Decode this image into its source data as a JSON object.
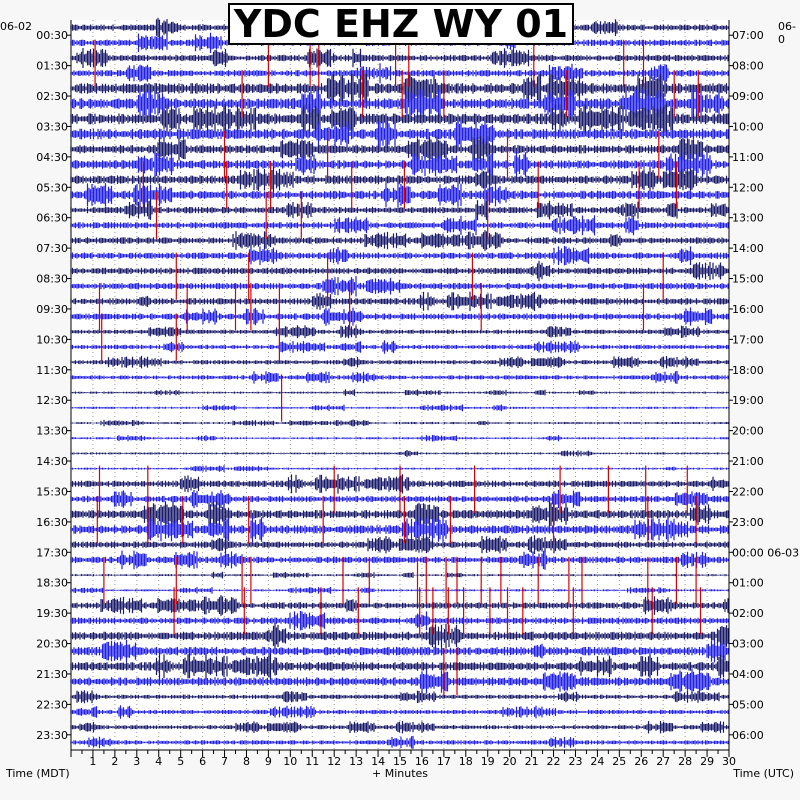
{
  "title": "YDC EHZ WY 01",
  "date_left": "06-02",
  "date_right": "06-0",
  "colors": {
    "dark": "#1a1a6b",
    "blue": "#1f1fe6",
    "event": "#dd0000",
    "grid": "#9a9a9a"
  },
  "chart_data": {
    "type": "helicorder",
    "title": "YDC EHZ WY 01",
    "xlabel": "+ Minutes",
    "ylabel_left": "Time (MDT)",
    "ylabel_right": "Time (UTC)",
    "x_ticks": [
      "1",
      "2",
      "3",
      "4",
      "5",
      "6",
      "7",
      "8",
      "9",
      "10",
      "11",
      "12",
      "13",
      "14",
      "15",
      "16",
      "17",
      "18",
      "19",
      "20",
      "21",
      "22",
      "23",
      "24",
      "25",
      "26",
      "27",
      "28",
      "29",
      "30"
    ],
    "xlim": [
      0,
      30
    ],
    "left_labels": [
      "00:30",
      "01:30",
      "02:30",
      "03:30",
      "04:30",
      "05:30",
      "06:30",
      "07:30",
      "08:30",
      "09:30",
      "10:30",
      "11:30",
      "12:30",
      "13:30",
      "14:30",
      "15:30",
      "16:30",
      "17:30",
      "18:30",
      "19:30",
      "20:30",
      "21:30",
      "22:30",
      "23:30"
    ],
    "right_labels": [
      "07:00",
      "08:00",
      "09:00",
      "10:00",
      "11:00",
      "12:00",
      "13:00",
      "14:00",
      "15:00",
      "16:00",
      "17:00",
      "18:00",
      "19:00",
      "20:00",
      "21:00",
      "22:00",
      "23:00",
      "00:00 06-03",
      "01:00",
      "02:00",
      "03:00",
      "04:00",
      "05:00",
      "06:00"
    ],
    "trace_count": 48,
    "trace_colors": [
      "dark",
      "blue"
    ],
    "noise_by_hour": [
      3,
      3,
      5,
      5,
      4,
      4,
      3,
      3,
      3,
      3,
      2,
      2,
      1,
      1,
      1,
      3,
      4,
      3,
      1,
      3,
      4,
      4,
      2,
      2
    ],
    "events": [
      {
        "line": 2,
        "minute": 1.1
      },
      {
        "line": 2,
        "minute": 9.0
      },
      {
        "line": 2,
        "minute": 10.9
      },
      {
        "line": 2,
        "minute": 11.3
      },
      {
        "line": 2,
        "minute": 14.8
      },
      {
        "line": 2,
        "minute": 15.4
      },
      {
        "line": 2,
        "minute": 21.1
      },
      {
        "line": 2,
        "minute": 25.2
      },
      {
        "line": 2,
        "minute": 26.1
      },
      {
        "line": 4,
        "minute": 7.8
      },
      {
        "line": 4,
        "minute": 13.3
      },
      {
        "line": 4,
        "minute": 15.1
      },
      {
        "line": 4,
        "minute": 17.0
      },
      {
        "line": 4,
        "minute": 22.6
      },
      {
        "line": 4,
        "minute": 27.5
      },
      {
        "line": 4,
        "minute": 28.6
      },
      {
        "line": 8,
        "minute": 7.0
      },
      {
        "line": 8,
        "minute": 11.7
      },
      {
        "line": 8,
        "minute": 19.9
      },
      {
        "line": 8,
        "minute": 26.8
      },
      {
        "line": 10,
        "minute": 3.3
      },
      {
        "line": 10,
        "minute": 7.1
      },
      {
        "line": 10,
        "minute": 9.1
      },
      {
        "line": 10,
        "minute": 12.8
      },
      {
        "line": 10,
        "minute": 15.2
      },
      {
        "line": 10,
        "minute": 21.3
      },
      {
        "line": 10,
        "minute": 25.9
      },
      {
        "line": 10,
        "minute": 27.6
      },
      {
        "line": 12,
        "minute": 3.9
      },
      {
        "line": 12,
        "minute": 8.9
      },
      {
        "line": 12,
        "minute": 10.5
      },
      {
        "line": 12,
        "minute": 19.0
      },
      {
        "line": 16,
        "minute": 4.8
      },
      {
        "line": 16,
        "minute": 8.1
      },
      {
        "line": 16,
        "minute": 11.7
      },
      {
        "line": 16,
        "minute": 18.3
      },
      {
        "line": 16,
        "minute": 27.0
      },
      {
        "line": 18,
        "minute": 1.3
      },
      {
        "line": 18,
        "minute": 5.3
      },
      {
        "line": 18,
        "minute": 7.5
      },
      {
        "line": 18,
        "minute": 8.2
      },
      {
        "line": 18,
        "minute": 9.5
      },
      {
        "line": 18,
        "minute": 12.7
      },
      {
        "line": 18,
        "minute": 18.7
      },
      {
        "line": 18,
        "minute": 26.1
      },
      {
        "line": 20,
        "minute": 1.4
      },
      {
        "line": 20,
        "minute": 4.8
      },
      {
        "line": 20,
        "minute": 9.5
      },
      {
        "line": 24,
        "minute": 9.6
      },
      {
        "line": 30,
        "minute": 1.3
      },
      {
        "line": 30,
        "minute": 3.5
      },
      {
        "line": 30,
        "minute": 12.0
      },
      {
        "line": 30,
        "minute": 15.0
      },
      {
        "line": 30,
        "minute": 18.4
      },
      {
        "line": 30,
        "minute": 22.3
      },
      {
        "line": 30,
        "minute": 24.5
      },
      {
        "line": 30,
        "minute": 26.2
      },
      {
        "line": 30,
        "minute": 28.1
      },
      {
        "line": 32,
        "minute": 1.2
      },
      {
        "line": 32,
        "minute": 3.5
      },
      {
        "line": 32,
        "minute": 5.1
      },
      {
        "line": 32,
        "minute": 8.1
      },
      {
        "line": 32,
        "minute": 11.5
      },
      {
        "line": 32,
        "minute": 15.2
      },
      {
        "line": 32,
        "minute": 17.3
      },
      {
        "line": 32,
        "minute": 22.0
      },
      {
        "line": 32,
        "minute": 26.3
      },
      {
        "line": 32,
        "minute": 28.5
      },
      {
        "line": 36,
        "minute": 1.5
      },
      {
        "line": 36,
        "minute": 4.8
      },
      {
        "line": 36,
        "minute": 7.8
      },
      {
        "line": 36,
        "minute": 8.2
      },
      {
        "line": 36,
        "minute": 12.4
      },
      {
        "line": 36,
        "minute": 13.6
      },
      {
        "line": 36,
        "minute": 15.8
      },
      {
        "line": 36,
        "minute": 16.2
      },
      {
        "line": 36,
        "minute": 17.1
      },
      {
        "line": 36,
        "minute": 17.6
      },
      {
        "line": 36,
        "minute": 18.7
      },
      {
        "line": 36,
        "minute": 19.6
      },
      {
        "line": 36,
        "minute": 21.3
      },
      {
        "line": 36,
        "minute": 22.7
      },
      {
        "line": 36,
        "minute": 23.3
      },
      {
        "line": 36,
        "minute": 26.3
      },
      {
        "line": 36,
        "minute": 27.6
      },
      {
        "line": 36,
        "minute": 28.5
      },
      {
        "line": 38,
        "minute": 4.7
      },
      {
        "line": 38,
        "minute": 7.9
      },
      {
        "line": 38,
        "minute": 11.4
      },
      {
        "line": 38,
        "minute": 13.1
      },
      {
        "line": 38,
        "minute": 15.9
      },
      {
        "line": 38,
        "minute": 16.5
      },
      {
        "line": 38,
        "minute": 17.2
      },
      {
        "line": 38,
        "minute": 17.9
      },
      {
        "line": 38,
        "minute": 19.1
      },
      {
        "line": 38,
        "minute": 19.9
      },
      {
        "line": 38,
        "minute": 20.6
      },
      {
        "line": 38,
        "minute": 22.9
      },
      {
        "line": 38,
        "minute": 26.5
      },
      {
        "line": 38,
        "minute": 28.7
      },
      {
        "line": 42,
        "minute": 17.0
      },
      {
        "line": 42,
        "minute": 17.6
      }
    ]
  }
}
